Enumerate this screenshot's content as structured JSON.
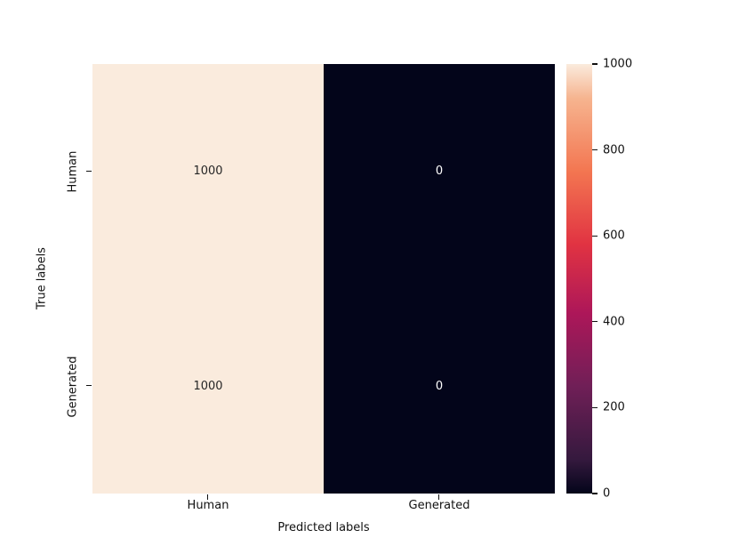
{
  "chart_data": {
    "type": "heatmap",
    "title": "",
    "xlabel": "Predicted labels",
    "ylabel": "True labels",
    "x_categories": [
      "Human",
      "Generated"
    ],
    "y_categories": [
      "Human",
      "Generated"
    ],
    "values": [
      [
        1000,
        0
      ],
      [
        1000,
        0
      ]
    ],
    "vmin": 0,
    "vmax": 1000,
    "colormap": "rocket",
    "colormap_stops": [
      {
        "pos": 0,
        "color": "#03051A"
      },
      {
        "pos": 8,
        "color": "#35193E"
      },
      {
        "pos": 25,
        "color": "#701F57"
      },
      {
        "pos": 42,
        "color": "#AD1759"
      },
      {
        "pos": 58,
        "color": "#E13342"
      },
      {
        "pos": 75,
        "color": "#F37651"
      },
      {
        "pos": 92,
        "color": "#F6B48F"
      },
      {
        "pos": 100,
        "color": "#FAEBDD"
      }
    ],
    "cell_colors": [
      [
        "#FAEBDD",
        "#03051A"
      ],
      [
        "#FAEBDD",
        "#03051A"
      ]
    ],
    "cell_text_colors": [
      [
        "#262626",
        "#FFFFFF"
      ],
      [
        "#262626",
        "#FFFFFF"
      ]
    ],
    "colorbar_tick_values": [
      0,
      200,
      400,
      600,
      800,
      1000
    ],
    "colorbar_tick_labels": [
      "0",
      "200",
      "400",
      "600",
      "800",
      "1000"
    ],
    "legend_position": "right-colorbar",
    "grid": false,
    "background": "#ffffff"
  }
}
